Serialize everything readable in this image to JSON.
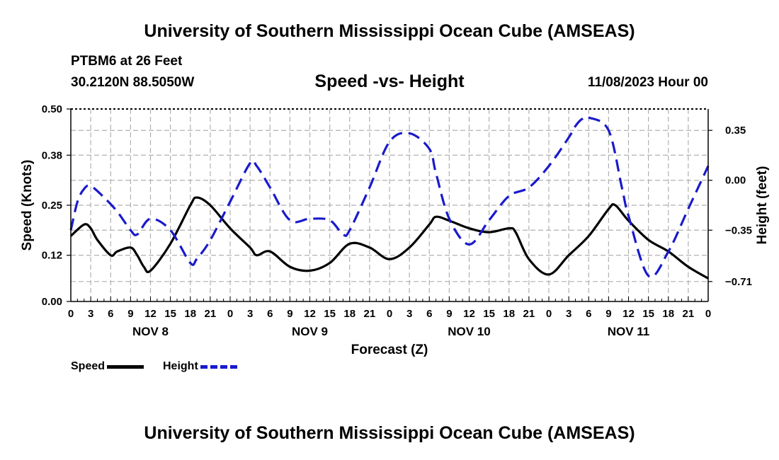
{
  "header": {
    "title": "University of Southern Mississippi Ocean Cube (AMSEAS)",
    "station": "PTBM6 at 26 Feet",
    "coords": "30.2120N  88.5050W",
    "subtitle": "Speed -vs- Height",
    "datetime": "11/08/2023 Hour 00"
  },
  "footer": {
    "title": "University of Southern Mississippi Ocean Cube (AMSEAS)"
  },
  "legend": {
    "speed": "Speed",
    "height": "Height"
  },
  "colors": {
    "speed": "#000000",
    "height": "#1a1acc",
    "grid": "#b0b0b0"
  },
  "chart_data": {
    "type": "line",
    "title": "Speed -vs- Height",
    "xlabel": "Forecast (Z)",
    "ylabel": "Speed (Knots)",
    "y2label": "Height (feet)",
    "xlim": [
      0,
      96
    ],
    "ylim": [
      0,
      0.5
    ],
    "y2lim": [
      -0.85,
      0.5
    ],
    "x_tick_labels": [
      "0",
      "3",
      "6",
      "9",
      "12",
      "15",
      "18",
      "21",
      "0",
      "3",
      "6",
      "9",
      "12",
      "15",
      "18",
      "21",
      "0",
      "3",
      "6",
      "9",
      "12",
      "15",
      "18",
      "21",
      "0",
      "3",
      "6",
      "9",
      "12",
      "15",
      "18",
      "21",
      "0"
    ],
    "y_ticks": [
      0,
      0.12,
      0.25,
      0.38,
      0.5
    ],
    "y_tick_labels": [
      "0.00",
      "0.12",
      "0.25",
      "0.38",
      "0.50"
    ],
    "y2_ticks": [
      -0.71,
      -0.35,
      0.0,
      0.35
    ],
    "y2_tick_labels": [
      "−0.71",
      "−0.35",
      "0.00",
      "0.35"
    ],
    "day_labels": [
      {
        "label": "NOV 8",
        "hour": 12
      },
      {
        "label": "NOV 9",
        "hour": 36
      },
      {
        "label": "NOV 10",
        "hour": 60
      },
      {
        "label": "NOV 11",
        "hour": 84
      }
    ],
    "series": [
      {
        "name": "Speed",
        "axis": "left",
        "style": "solid",
        "x": [
          0,
          2,
          3,
          4,
          6,
          7,
          9,
          10,
          11,
          12,
          15,
          18,
          19,
          21,
          24,
          27,
          28,
          30,
          33,
          36,
          39,
          42,
          45,
          48,
          51,
          54,
          55,
          57,
          60,
          63,
          66,
          67,
          69,
          72,
          75,
          78,
          81,
          82,
          84,
          87,
          90,
          93,
          96
        ],
        "y": [
          0.17,
          0.2,
          0.19,
          0.16,
          0.12,
          0.13,
          0.14,
          0.12,
          0.09,
          0.08,
          0.15,
          0.25,
          0.27,
          0.25,
          0.19,
          0.14,
          0.12,
          0.13,
          0.09,
          0.08,
          0.1,
          0.15,
          0.14,
          0.11,
          0.14,
          0.2,
          0.22,
          0.21,
          0.19,
          0.18,
          0.19,
          0.18,
          0.11,
          0.07,
          0.12,
          0.17,
          0.24,
          0.25,
          0.21,
          0.16,
          0.13,
          0.09,
          0.06
        ]
      },
      {
        "name": "Height",
        "axis": "right",
        "style": "dashed",
        "x": [
          0,
          1,
          2,
          3,
          5,
          7,
          9,
          10,
          12,
          15,
          18,
          19,
          21,
          24,
          27,
          28,
          30,
          33,
          36,
          39,
          41,
          42,
          45,
          48,
          51,
          54,
          55,
          57,
          60,
          63,
          66,
          69,
          72,
          75,
          76,
          77,
          78,
          81,
          83,
          84,
          87,
          90,
          93,
          96
        ],
        "y": [
          -0.35,
          -0.15,
          -0.06,
          -0.04,
          -0.12,
          -0.22,
          -0.35,
          -0.38,
          -0.27,
          -0.35,
          -0.58,
          -0.55,
          -0.42,
          -0.15,
          0.12,
          0.1,
          -0.05,
          -0.28,
          -0.27,
          -0.28,
          -0.38,
          -0.35,
          -0.05,
          0.27,
          0.33,
          0.22,
          0.05,
          -0.27,
          -0.45,
          -0.28,
          -0.11,
          -0.05,
          0.1,
          0.3,
          0.38,
          0.43,
          0.44,
          0.35,
          -0.05,
          -0.25,
          -0.67,
          -0.5,
          -0.2,
          0.1
        ]
      }
    ]
  }
}
